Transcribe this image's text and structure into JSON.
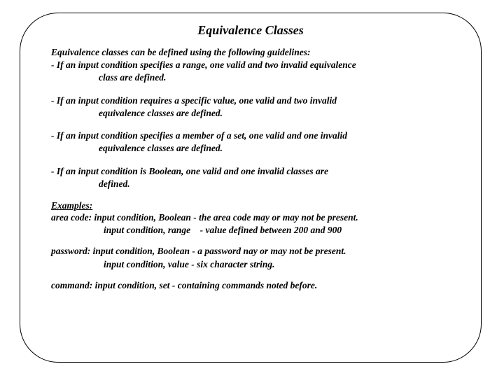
{
  "title": "Equivalence Classes",
  "intro": "Equivalence classes can be defined using the following guidelines:",
  "bullets": [
    {
      "line1": "- If an input condition specifies a range, one valid and two invalid equivalence",
      "line2": "class are defined."
    },
    {
      "line1": "- If an input condition requires a specific value, one valid and two invalid",
      "line2": "equivalence classes are defined."
    },
    {
      "line1": "- If an input condition specifies a member of a set, one valid and one invalid",
      "line2": "equivalence classes are defined."
    },
    {
      "line1": "- If an input condition is Boolean, one valid and one invalid classes are",
      "line2": "defined."
    }
  ],
  "examples_label": "Examples:",
  "examples": [
    {
      "line1": "area code: input condition, Boolean - the area code may or may not be present.",
      "line2": "input condition, range    - value defined between 200 and 900"
    },
    {
      "line1": "password: input condition, Boolean - a password nay or may not be present.",
      "line2": "input condition, value - six character string."
    },
    {
      "line1": "command: input condition, set - containing commands noted before.",
      "line2": ""
    }
  ],
  "style": {
    "font_family": "Georgia, Times New Roman, serif",
    "title_fontsize": 18,
    "body_fontsize": 13.5,
    "font_style": "italic",
    "font_weight": "bold",
    "border_color": "#000000",
    "border_radius": 55,
    "background": "#ffffff",
    "text_color": "#000000"
  }
}
